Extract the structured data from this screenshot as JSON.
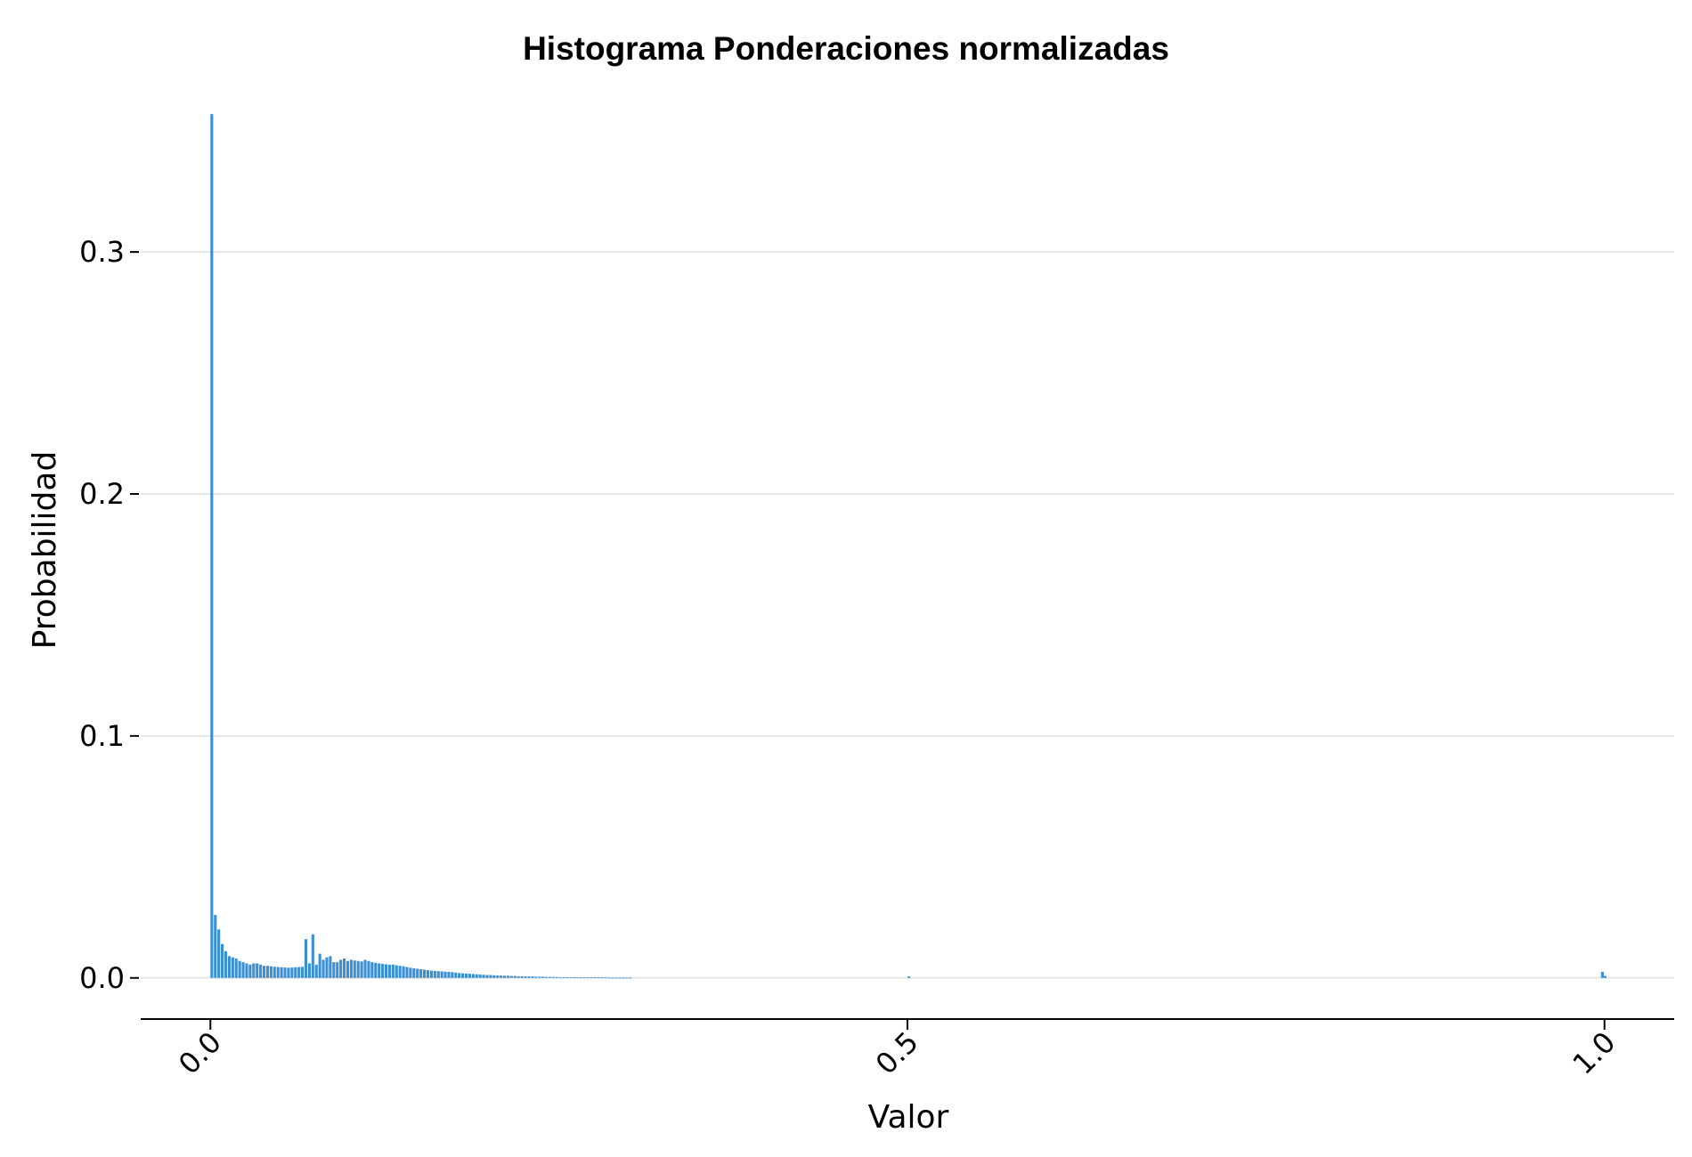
{
  "chart_data": {
    "type": "bar",
    "title": "Histograma Ponderaciones normalizadas",
    "xlabel": "Valor",
    "ylabel": "Probabilidad",
    "xlim": [
      -0.05,
      1.05
    ],
    "ylim": [
      -0.017,
      0.36
    ],
    "xticks": [
      "0.0",
      "0.5",
      "1.0"
    ],
    "xtick_values": [
      0.0,
      0.5,
      1.0
    ],
    "yticks": [
      "0.0",
      "0.1",
      "0.2",
      "0.3"
    ],
    "ytick_values": [
      0.0,
      0.1,
      0.2,
      0.3
    ],
    "grid": "horizontal",
    "bar_color": "#3b8fd4",
    "grid_color": "#e5e5e5",
    "bin_width": 0.0025,
    "series": [
      {
        "x": [
          0.0,
          0.0025,
          0.005,
          0.0075,
          0.01,
          0.0125,
          0.015,
          0.0175,
          0.02,
          0.0225,
          0.025,
          0.0275,
          0.03,
          0.0325,
          0.035,
          0.0375,
          0.04,
          0.0425,
          0.045,
          0.0475,
          0.05,
          0.0525,
          0.055,
          0.0575,
          0.06,
          0.0625,
          0.065,
          0.0675,
          0.07,
          0.0725,
          0.075,
          0.0775,
          0.08,
          0.0825,
          0.085,
          0.0875,
          0.09,
          0.0925,
          0.095,
          0.0975,
          0.1,
          0.1025,
          0.105,
          0.1075,
          0.11,
          0.1125,
          0.115,
          0.1175,
          0.12,
          0.1225,
          0.125,
          0.1275,
          0.13,
          0.1325,
          0.135,
          0.1375,
          0.14,
          0.1425,
          0.145,
          0.1475,
          0.15,
          0.1525,
          0.155,
          0.1575,
          0.16,
          0.1625,
          0.165,
          0.1675,
          0.17,
          0.1725,
          0.175,
          0.1775,
          0.18,
          0.1825,
          0.185,
          0.1875,
          0.19,
          0.1925,
          0.195,
          0.1975,
          0.2,
          0.2025,
          0.205,
          0.2075,
          0.21,
          0.2125,
          0.215,
          0.2175,
          0.22,
          0.2225,
          0.225,
          0.2275,
          0.23,
          0.2325,
          0.235,
          0.2375,
          0.24,
          0.2425,
          0.245,
          0.2475,
          0.25,
          0.2525,
          0.255,
          0.2575,
          0.26,
          0.2625,
          0.265,
          0.2675,
          0.27,
          0.2725,
          0.275,
          0.2775,
          0.28,
          0.2825,
          0.285,
          0.2875,
          0.29,
          0.2925,
          0.295,
          0.2975,
          0.3,
          0.5,
          0.9975,
          0.9995
        ],
        "values": [
          0.357,
          0.026,
          0.02,
          0.014,
          0.011,
          0.009,
          0.0085,
          0.008,
          0.007,
          0.0065,
          0.006,
          0.0055,
          0.006,
          0.006,
          0.0055,
          0.005,
          0.005,
          0.0048,
          0.0046,
          0.0045,
          0.0044,
          0.0043,
          0.0042,
          0.0043,
          0.0044,
          0.0045,
          0.0046,
          0.016,
          0.006,
          0.018,
          0.0055,
          0.01,
          0.0075,
          0.0085,
          0.009,
          0.0065,
          0.0065,
          0.0075,
          0.008,
          0.007,
          0.0075,
          0.0072,
          0.007,
          0.0068,
          0.0075,
          0.007,
          0.0065,
          0.0062,
          0.006,
          0.0058,
          0.0056,
          0.0054,
          0.0055,
          0.0052,
          0.005,
          0.0048,
          0.0045,
          0.0042,
          0.004,
          0.0038,
          0.0036,
          0.0034,
          0.0032,
          0.003,
          0.0029,
          0.0028,
          0.0027,
          0.0026,
          0.0025,
          0.0024,
          0.0022,
          0.002,
          0.0019,
          0.0018,
          0.0017,
          0.0016,
          0.0015,
          0.0014,
          0.0013,
          0.0012,
          0.0012,
          0.0011,
          0.001,
          0.001,
          0.0009,
          0.0009,
          0.0008,
          0.0008,
          0.0007,
          0.0007,
          0.0006,
          0.0006,
          0.0006,
          0.0005,
          0.0005,
          0.0005,
          0.0004,
          0.0004,
          0.0004,
          0.0004,
          0.0003,
          0.0003,
          0.0003,
          0.0003,
          0.0003,
          0.0002,
          0.0002,
          0.0002,
          0.0002,
          0.0002,
          0.0002,
          0.0002,
          0.0002,
          0.0002,
          0.0001,
          0.0001,
          0.0001,
          0.0001,
          0.0001,
          0.0001,
          0.0001,
          0.0006,
          0.0025,
          0.0008
        ]
      }
    ]
  }
}
